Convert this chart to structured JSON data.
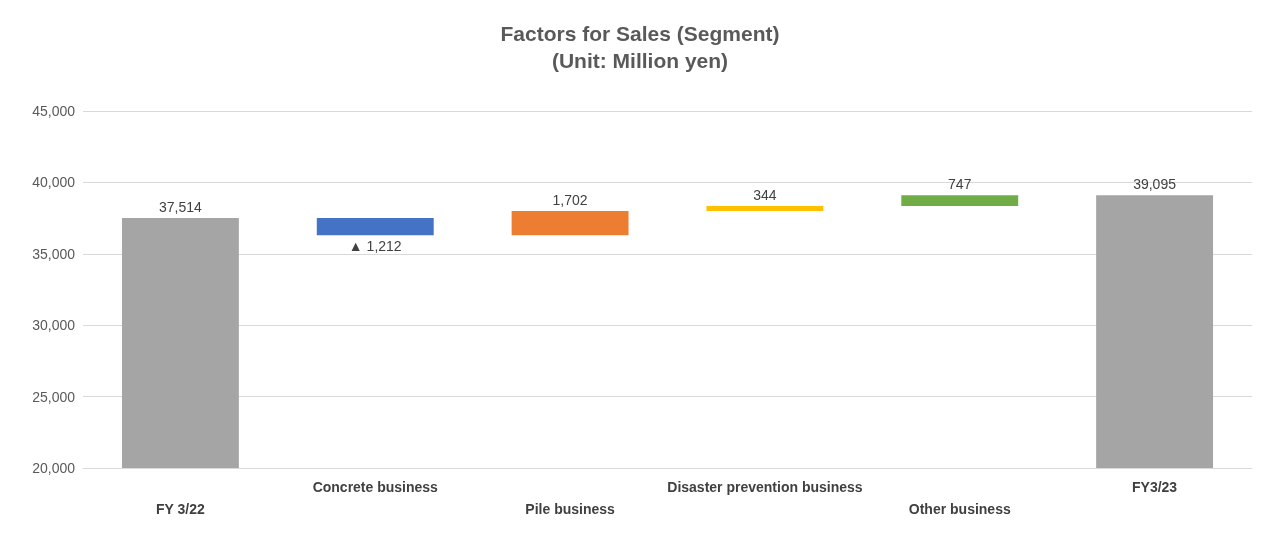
{
  "chart_data": {
    "type": "bar",
    "title": "Factors for Sales (Segment)",
    "subtitle": "(Unit: Million yen)",
    "categories": [
      "FY 3/22",
      "Concrete business",
      "Pile business",
      "Disaster prevention business",
      "Other business",
      "FY3/23"
    ],
    "values": [
      37514,
      -1212,
      1702,
      344,
      747,
      39095
    ],
    "base": [
      null,
      37514,
      36302,
      38004,
      38348,
      null
    ],
    "colors": [
      "#a5a5a5",
      "#4472c4",
      "#ed7d31",
      "#ffc000",
      "#70ad47",
      "#a5a5a5"
    ],
    "value_labels": [
      "37,514",
      "▲ 1,212",
      "1,702",
      "344",
      "747",
      "39,095"
    ],
    "ylim": [
      20000,
      45000
    ],
    "yticks": [
      {
        "value": 20000,
        "label": "20,000"
      },
      {
        "value": 25000,
        "label": "25,000"
      },
      {
        "value": 30000,
        "label": "30,000"
      },
      {
        "value": 35000,
        "label": "35,000"
      },
      {
        "value": 40000,
        "label": "40,000"
      },
      {
        "value": 45000,
        "label": "45,000"
      }
    ],
    "grid": "y"
  }
}
